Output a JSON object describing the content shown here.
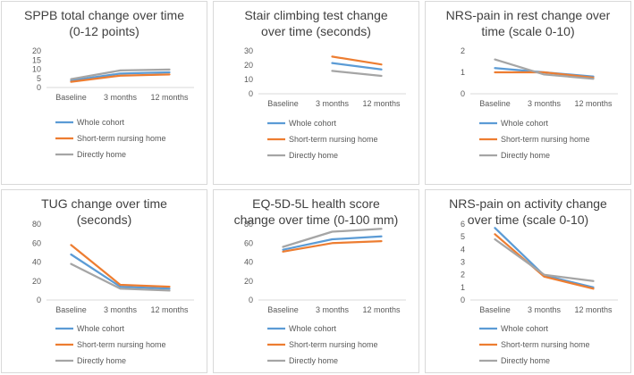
{
  "chart_data": [
    {
      "type": "line",
      "title_lines": [
        "SPPB total change over time",
        "(0-12 points)"
      ],
      "categories": [
        "Baseline",
        "3 months",
        "12 months"
      ],
      "yticks": [
        0,
        5,
        10,
        15,
        20
      ],
      "ylim": [
        0,
        20
      ],
      "series": [
        {
          "name": "Whole cohort",
          "color": "#5b9bd5",
          "values": [
            3.8,
            7.6,
            8.3
          ]
        },
        {
          "name": "Short-term nursing home",
          "color": "#ed7d31",
          "values": [
            3.1,
            6.5,
            7.1
          ]
        },
        {
          "name": "Directly home",
          "color": "#a5a5a5",
          "values": [
            4.6,
            9.3,
            9.8
          ]
        }
      ]
    },
    {
      "type": "line",
      "title_lines": [
        "Stair climbing test change",
        "over time (seconds)"
      ],
      "categories": [
        "Baseline",
        "3 months",
        "12 months"
      ],
      "yticks": [
        0,
        10,
        20,
        30
      ],
      "ylim": [
        0,
        30
      ],
      "series": [
        {
          "name": "Whole cohort",
          "color": "#5b9bd5",
          "values": [
            null,
            21.5,
            17
          ]
        },
        {
          "name": "Short-term nursing home",
          "color": "#ed7d31",
          "values": [
            null,
            26,
            20.5
          ]
        },
        {
          "name": "Directly home",
          "color": "#a5a5a5",
          "values": [
            null,
            16,
            12.5
          ]
        }
      ]
    },
    {
      "type": "line",
      "title_lines": [
        "NRS-pain in rest change over",
        "time (scale 0-10)"
      ],
      "categories": [
        "Baseline",
        "3 months",
        "12 months"
      ],
      "yticks": [
        0,
        1,
        2
      ],
      "ylim": [
        0,
        2
      ],
      "series": [
        {
          "name": "Whole cohort",
          "color": "#5b9bd5",
          "values": [
            1.2,
            1.0,
            0.8
          ]
        },
        {
          "name": "Short-term nursing home",
          "color": "#ed7d31",
          "values": [
            1.0,
            1.0,
            0.75
          ]
        },
        {
          "name": "Directly home",
          "color": "#a5a5a5",
          "values": [
            1.6,
            0.9,
            0.7
          ]
        }
      ]
    },
    {
      "type": "line",
      "title_lines": [
        "TUG change over time",
        "(seconds)"
      ],
      "categories": [
        "Baseline",
        "3 months",
        "12 months"
      ],
      "yticks": [
        0,
        20,
        40,
        60,
        80
      ],
      "ylim": [
        0,
        80
      ],
      "series": [
        {
          "name": "Whole cohort",
          "color": "#5b9bd5",
          "values": [
            48,
            14,
            12
          ]
        },
        {
          "name": "Short-term nursing home",
          "color": "#ed7d31",
          "values": [
            58,
            16,
            14
          ]
        },
        {
          "name": "Directly home",
          "color": "#a5a5a5",
          "values": [
            38,
            12,
            10
          ]
        }
      ]
    },
    {
      "type": "line",
      "title_lines": [
        "EQ-5D-5L health score",
        "change over time (0-100 mm)"
      ],
      "categories": [
        "Baseline",
        "3 months",
        "12 months"
      ],
      "yticks": [
        0,
        20,
        40,
        60,
        80
      ],
      "ylim": [
        0,
        80
      ],
      "series": [
        {
          "name": "Whole cohort",
          "color": "#5b9bd5",
          "values": [
            53,
            64,
            67
          ]
        },
        {
          "name": "Short-term nursing home",
          "color": "#ed7d31",
          "values": [
            51,
            60,
            62
          ]
        },
        {
          "name": "Directly home",
          "color": "#a5a5a5",
          "values": [
            56,
            72,
            75
          ]
        }
      ]
    },
    {
      "type": "line",
      "title_lines": [
        "NRS-pain on activity change",
        "over time (scale 0-10)"
      ],
      "categories": [
        "Baseline",
        "3 months",
        "12 months"
      ],
      "yticks": [
        0,
        1,
        2,
        3,
        4,
        5,
        6
      ],
      "ylim": [
        0,
        6
      ],
      "series": [
        {
          "name": "Whole cohort",
          "color": "#5b9bd5",
          "values": [
            5.7,
            1.95,
            1.0
          ]
        },
        {
          "name": "Short-term nursing home",
          "color": "#ed7d31",
          "values": [
            5.2,
            1.85,
            0.9
          ]
        },
        {
          "name": "Directly home",
          "color": "#a5a5a5",
          "values": [
            4.8,
            2.0,
            1.5
          ]
        }
      ]
    }
  ]
}
